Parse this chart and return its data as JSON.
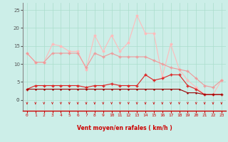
{
  "x": [
    0,
    1,
    2,
    3,
    4,
    5,
    6,
    7,
    8,
    9,
    10,
    11,
    12,
    13,
    14,
    15,
    16,
    17,
    18,
    19,
    20,
    21,
    22,
    23
  ],
  "line1": [
    13,
    10.5,
    10.5,
    15.5,
    15,
    13.5,
    13.5,
    8.5,
    18,
    13.5,
    18,
    13.5,
    16,
    23.5,
    18.5,
    18.5,
    6.5,
    15.5,
    8.5,
    5.5,
    3.5,
    1.5,
    1.5,
    5.5
  ],
  "line2": [
    13,
    10.5,
    10.5,
    13,
    13,
    13,
    13,
    9,
    13,
    12,
    13,
    12,
    12,
    12,
    12,
    11,
    10,
    9,
    8.5,
    8,
    6,
    4,
    3.5,
    5.5
  ],
  "line3": [
    3,
    4,
    4,
    4,
    4,
    4,
    4,
    3.5,
    4,
    4,
    4.5,
    4,
    4,
    4,
    7,
    5.5,
    6,
    7,
    7,
    4,
    3,
    1.5,
    1.5,
    1.5
  ],
  "line4": [
    3,
    3,
    3,
    3,
    3,
    3,
    3,
    3,
    3,
    3,
    3,
    3,
    3,
    3,
    3,
    3,
    3,
    3,
    3,
    2,
    2,
    1.5,
    1.5,
    1.5
  ],
  "bg_color": "#cceee8",
  "grid_color": "#aaddcc",
  "line1_color": "#ffbbbb",
  "line2_color": "#ee9999",
  "line3_color": "#dd2222",
  "line4_color": "#990000",
  "arrow_color": "#cc2222",
  "xlabel": "Vent moyen/en rafales ( km/h )",
  "ylim": [
    -3,
    27
  ],
  "yticks": [
    0,
    5,
    10,
    15,
    20,
    25
  ],
  "xlim": [
    -0.5,
    23.5
  ],
  "arrow_angles": [
    90,
    90,
    90,
    90,
    90,
    90,
    90,
    90,
    90,
    90,
    90,
    90,
    90,
    90,
    60,
    60,
    60,
    60,
    90,
    45,
    45,
    45,
    45,
    45
  ]
}
